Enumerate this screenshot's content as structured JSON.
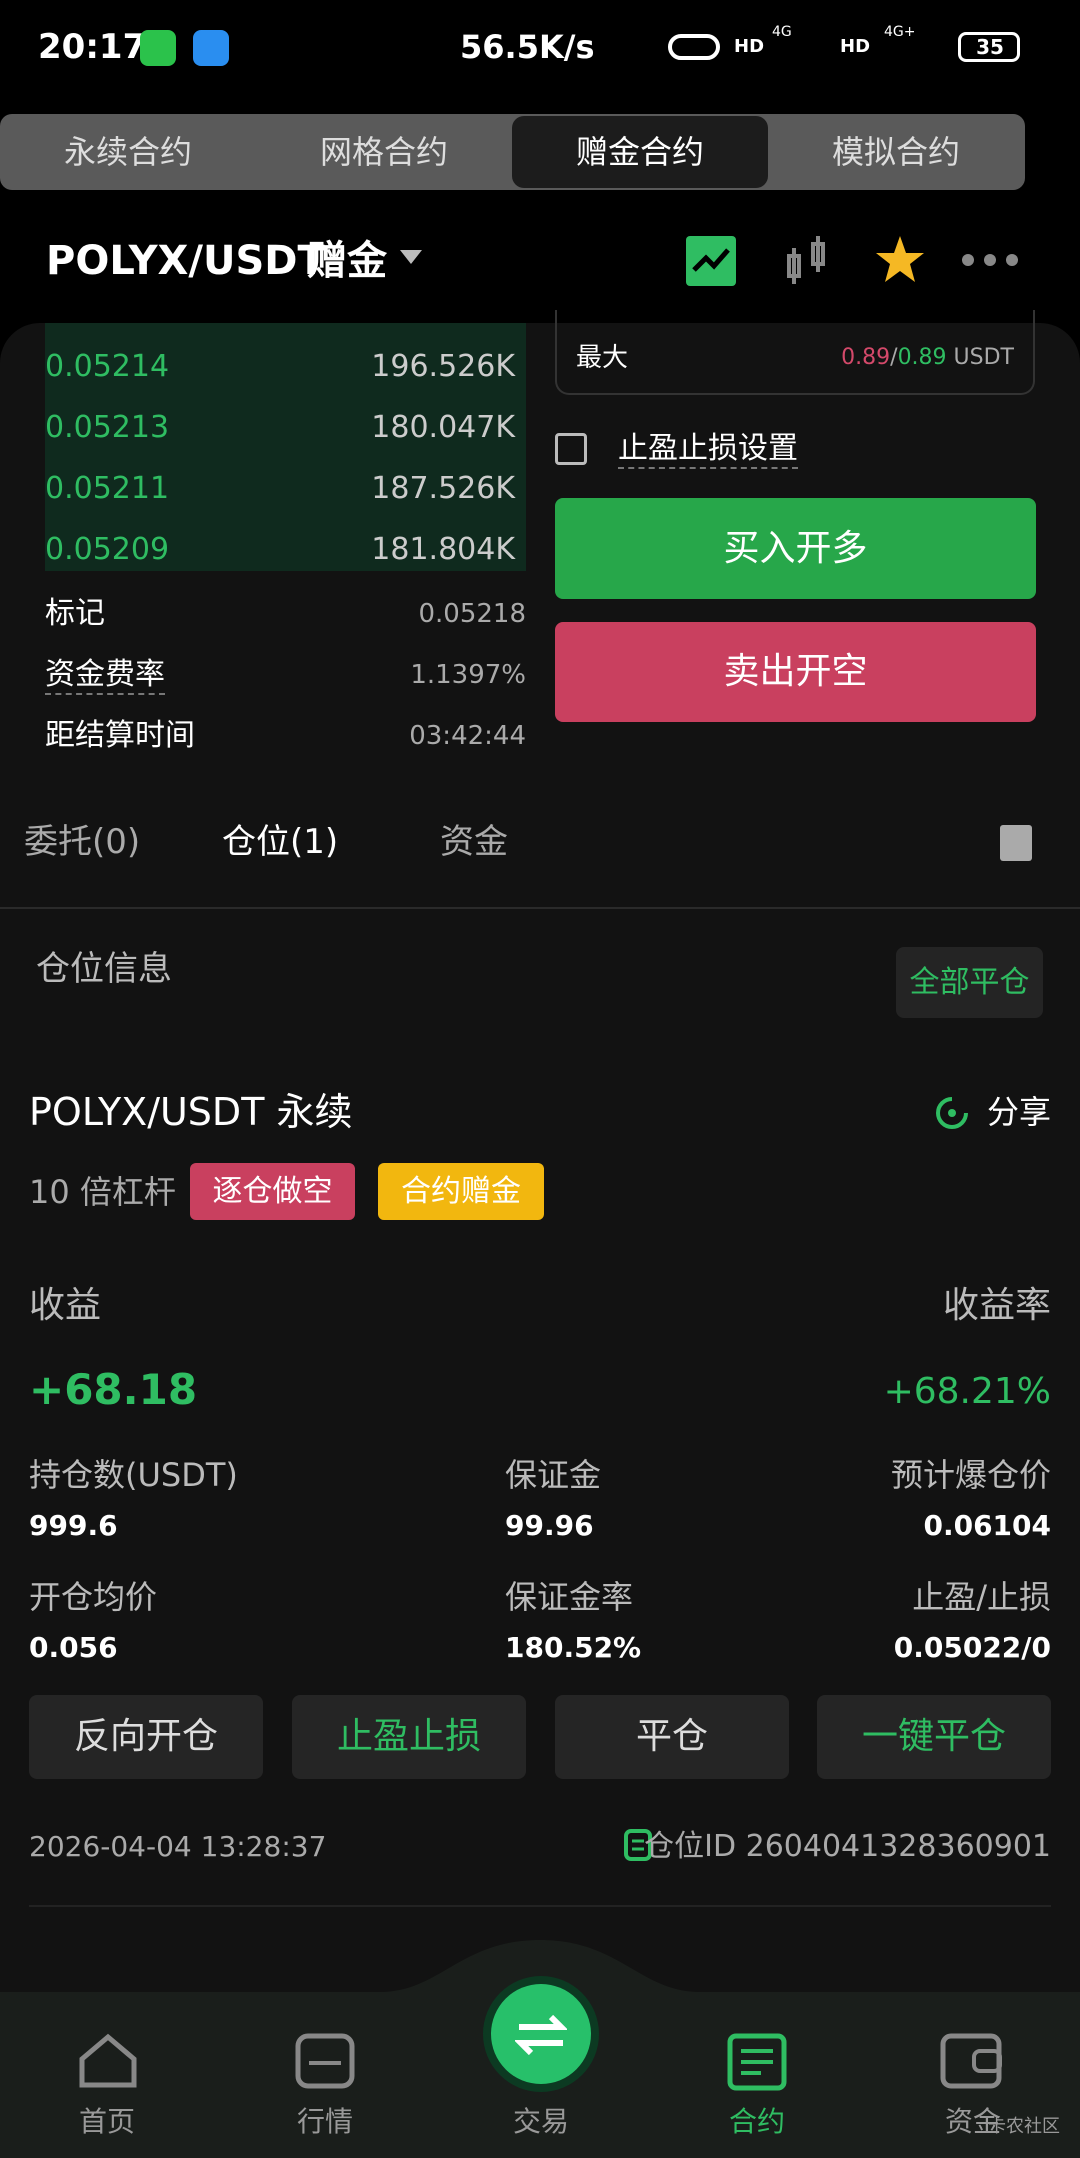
{
  "status_bar": {
    "time": "20:17",
    "network_speed": "56.5K/s",
    "hd": "HD",
    "signal_1": "4G",
    "signal_2": "4G+",
    "battery": "35"
  },
  "top_tabs": [
    "永续合约",
    "网格合约",
    "赠金合约",
    "模拟合约"
  ],
  "header": {
    "pair": "POLYX/USDT",
    "mode": "赠金"
  },
  "order_book": [
    [
      "0.05214",
      "196.526K"
    ],
    [
      "0.05213",
      "180.047K"
    ],
    [
      "0.05211",
      "187.526K"
    ],
    [
      "0.05209",
      "181.804K"
    ]
  ],
  "max": {
    "label": "最大",
    "sell": "0.89",
    "separator": "/",
    "buy": "0.89",
    "unit": "USDT"
  },
  "tpsl_setting": "止盈止损设置",
  "buy_button": "买入开多",
  "sell_button": "卖出开空",
  "stats": [
    [
      "标记",
      "0.05218"
    ],
    [
      "资金费率",
      "1.1397%"
    ],
    [
      "距结算时间",
      "03:42:44"
    ]
  ],
  "list_tabs": [
    "委托(0)",
    "仓位(1)",
    "资金"
  ],
  "position": {
    "section_title": "仓位信息",
    "close_all": "全部平仓",
    "symbol": "POLYX/USDT 永续",
    "share": "分享",
    "leverage": "10 倍杠杆",
    "tags": [
      "逐仓做空",
      "合约赠金"
    ],
    "pnl_label": "收益",
    "pnl_rate_label": "收益率",
    "pnl": "+68.18",
    "pnl_rate": "+68.21%",
    "fields": [
      {
        "label": "持仓数(USDT)",
        "value": "999.6"
      },
      {
        "label": "保证金",
        "value": "99.96"
      },
      {
        "label": "预计爆仓价",
        "value": "0.06104"
      },
      {
        "label": "开仓均价",
        "value": "0.056"
      },
      {
        "label": "保证金率",
        "value": "180.52%"
      },
      {
        "label": "止盈/止损",
        "value": "0.05022/0"
      }
    ],
    "actions": [
      "反向开仓",
      "止盈止损",
      "平仓",
      "一键平仓"
    ],
    "time": "2026-04-04 13:28:37",
    "id_label": "仓位ID 2604041328360901"
  },
  "bottom_nav": [
    "首页",
    "行情",
    "交易",
    "合约",
    "资金"
  ],
  "watermark": "卡农社区"
}
